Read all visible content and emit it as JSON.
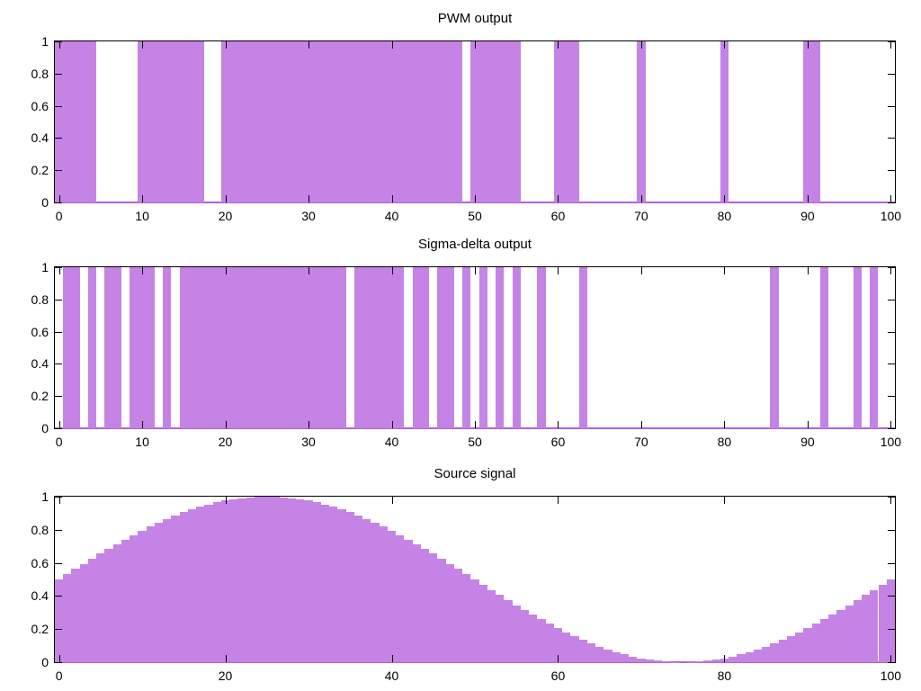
{
  "figure": {
    "background": "#ffffff",
    "fill_color": "#c583e5",
    "baseline_color": "#ae62dc",
    "border_color": "#000000",
    "text_color": "#000000"
  },
  "chart_data": [
    {
      "type": "area",
      "title": "PWM output",
      "signal": "binary-pulse-train",
      "samples": 101,
      "xlim": [
        -0.5,
        100.5
      ],
      "ylim": [
        0,
        1
      ],
      "x_ticks": [
        0,
        10,
        20,
        30,
        40,
        50,
        60,
        70,
        80,
        90,
        100
      ],
      "y_ticks": [
        "0",
        "0.2",
        "0.4",
        "0.6",
        "0.8",
        "1"
      ],
      "grid": false,
      "legend": "none",
      "high_runs": [
        [
          0,
          4
        ],
        [
          10,
          17
        ],
        [
          20,
          48
        ],
        [
          50,
          55
        ],
        [
          60,
          62
        ],
        [
          70,
          70
        ],
        [
          80,
          80
        ],
        [
          90,
          91
        ]
      ]
    },
    {
      "type": "area",
      "title": "Sigma-delta output",
      "signal": "binary-pulse-train",
      "samples": 101,
      "xlim": [
        -0.5,
        100.5
      ],
      "ylim": [
        0,
        1
      ],
      "x_ticks": [
        0,
        10,
        20,
        30,
        40,
        50,
        60,
        70,
        80,
        90,
        100
      ],
      "y_ticks": [
        "0",
        "0.2",
        "0.4",
        "0.6",
        "0.8",
        "1"
      ],
      "grid": false,
      "legend": "none",
      "high_runs": [
        [
          1,
          2
        ],
        [
          4,
          4
        ],
        [
          6,
          7
        ],
        [
          9,
          11
        ],
        [
          13,
          13
        ],
        [
          15,
          34
        ],
        [
          36,
          41
        ],
        [
          43,
          44
        ],
        [
          46,
          47
        ],
        [
          49,
          49
        ],
        [
          51,
          51
        ],
        [
          53,
          53
        ],
        [
          55,
          55
        ],
        [
          58,
          58
        ],
        [
          63,
          63
        ],
        [
          86,
          86
        ],
        [
          92,
          92
        ],
        [
          96,
          96
        ],
        [
          98,
          98
        ]
      ]
    },
    {
      "type": "bar",
      "title": "Source signal",
      "signal": "raised-sine 0.5+0.5*sin(2*pi*t/100)",
      "samples": 101,
      "xlim": [
        -0.5,
        100.5
      ],
      "ylim": [
        0,
        1
      ],
      "x_ticks": [
        0,
        20,
        40,
        60,
        80,
        100
      ],
      "y_ticks": [
        "0",
        "0.2",
        "0.4",
        "0.6",
        "0.8",
        "1"
      ],
      "grid": false,
      "legend": "none",
      "values": [
        0.5,
        0.531,
        0.563,
        0.594,
        0.624,
        0.655,
        0.684,
        0.713,
        0.741,
        0.768,
        0.794,
        0.819,
        0.842,
        0.865,
        0.885,
        0.905,
        0.922,
        0.938,
        0.952,
        0.965,
        0.976,
        0.984,
        0.991,
        0.996,
        0.999,
        1.0,
        0.999,
        0.996,
        0.991,
        0.984,
        0.976,
        0.965,
        0.952,
        0.938,
        0.922,
        0.905,
        0.885,
        0.865,
        0.842,
        0.819,
        0.794,
        0.768,
        0.741,
        0.713,
        0.684,
        0.655,
        0.624,
        0.594,
        0.563,
        0.531,
        0.5,
        0.469,
        0.437,
        0.406,
        0.376,
        0.345,
        0.316,
        0.287,
        0.259,
        0.232,
        0.206,
        0.181,
        0.158,
        0.135,
        0.115,
        0.095,
        0.078,
        0.062,
        0.048,
        0.035,
        0.024,
        0.016,
        0.009,
        0.004,
        0.001,
        0.0,
        0.001,
        0.004,
        0.009,
        0.016,
        0.024,
        0.035,
        0.048,
        0.062,
        0.078,
        0.095,
        0.115,
        0.135,
        0.158,
        0.181,
        0.206,
        0.232,
        0.259,
        0.287,
        0.316,
        0.345,
        0.376,
        0.406,
        0.437,
        0.469,
        0.5
      ]
    }
  ]
}
